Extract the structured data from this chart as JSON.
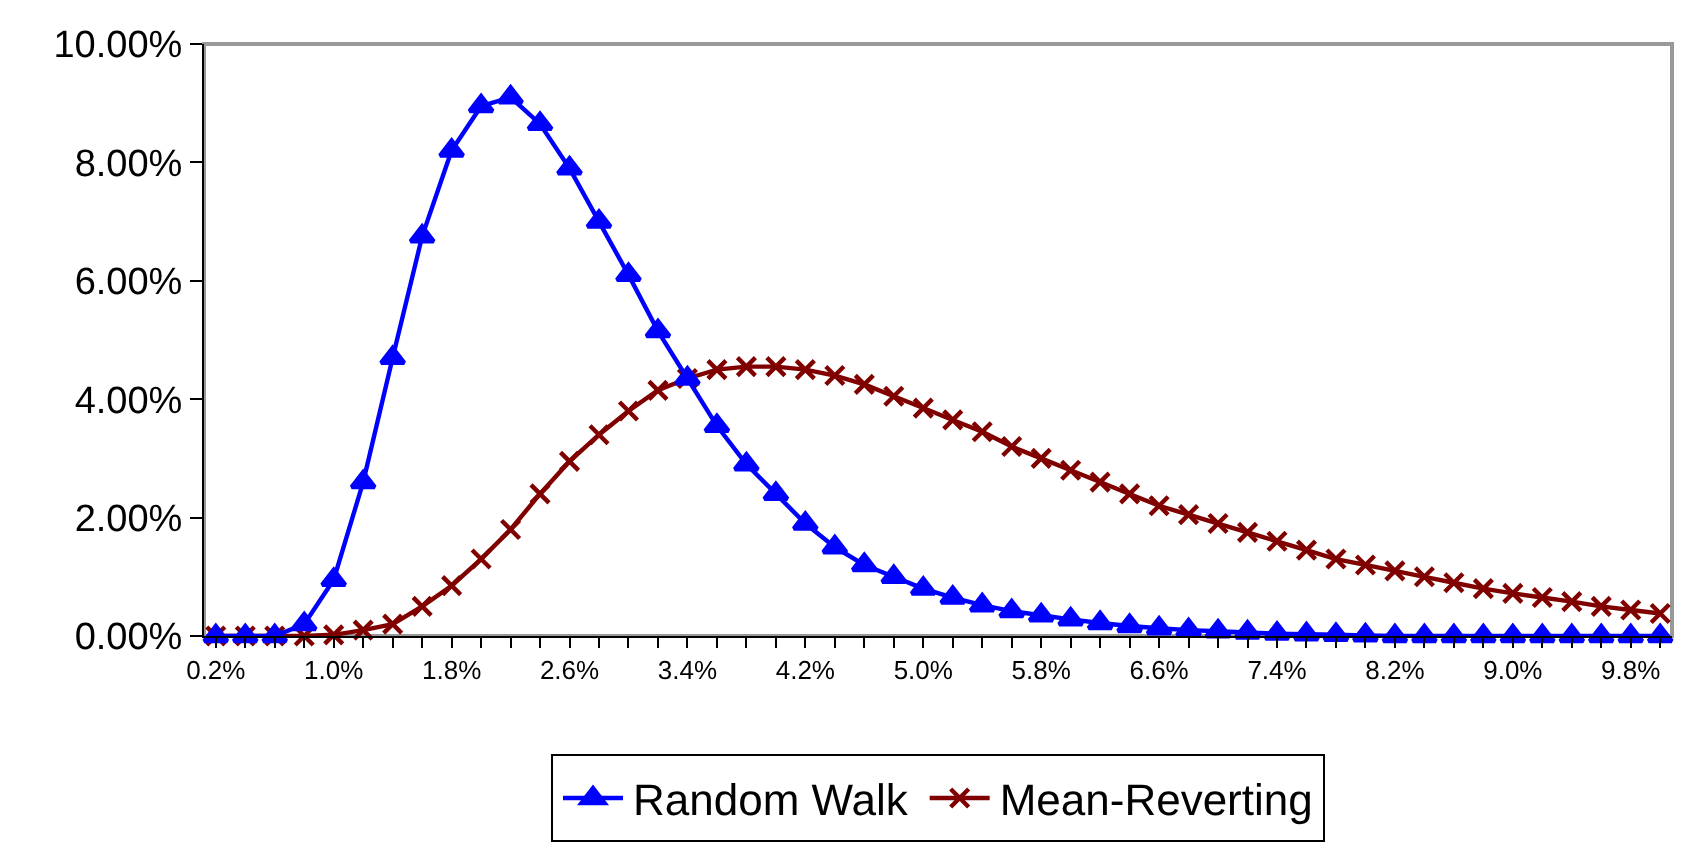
{
  "chart_data": {
    "type": "line",
    "categories": [
      "0.2%",
      null,
      null,
      null,
      "1.0%",
      null,
      null,
      null,
      "1.8%",
      null,
      null,
      null,
      "2.6%",
      null,
      null,
      null,
      "3.4%",
      null,
      null,
      null,
      "4.2%",
      null,
      null,
      null,
      "5.0%",
      null,
      null,
      null,
      "5.8%",
      null,
      null,
      null,
      "6.6%",
      null,
      null,
      null,
      "7.4%",
      null,
      null,
      null,
      "8.2%",
      null,
      null,
      null,
      "9.0%",
      null,
      null,
      null,
      "9.8%",
      null
    ],
    "series": [
      {
        "name": "Random Walk",
        "color": "#0000ff",
        "marker": "triangle",
        "values": [
          0,
          0,
          0,
          0.2,
          0.95,
          2.6,
          4.7,
          6.75,
          8.2,
          8.95,
          9.1,
          8.65,
          7.9,
          7.0,
          6.1,
          5.15,
          4.35,
          3.55,
          2.9,
          2.4,
          1.9,
          1.5,
          1.2,
          1.0,
          0.8,
          0.65,
          0.52,
          0.42,
          0.35,
          0.28,
          0.22,
          0.17,
          0.13,
          0.1,
          0.08,
          0.06,
          0.04,
          0.03,
          0.02,
          0.01,
          0,
          0,
          0,
          0,
          0,
          0,
          0,
          0,
          0,
          0
        ]
      },
      {
        "name": "Mean-Reverting",
        "color": "#800000",
        "marker": "cross",
        "values": [
          0,
          0,
          0,
          0,
          0.02,
          0.1,
          0.2,
          0.5,
          0.85,
          1.3,
          1.8,
          2.4,
          2.95,
          3.4,
          3.8,
          4.15,
          4.35,
          4.5,
          4.55,
          4.55,
          4.5,
          4.4,
          4.25,
          4.05,
          3.85,
          3.65,
          3.45,
          3.2,
          3.0,
          2.8,
          2.6,
          2.4,
          2.2,
          2.05,
          1.9,
          1.75,
          1.6,
          1.45,
          1.3,
          1.2,
          1.1,
          1.0,
          0.9,
          0.8,
          0.72,
          0.65,
          0.58,
          0.5,
          0.44,
          0.38
        ]
      }
    ],
    "ylim": [
      0,
      10
    ],
    "yticks": [
      {
        "value": 0,
        "label": "0.00%"
      },
      {
        "value": 2,
        "label": "2.00%"
      },
      {
        "value": 4,
        "label": "4.00%"
      },
      {
        "value": 6,
        "label": "6.00%"
      },
      {
        "value": 8,
        "label": "8.00%"
      },
      {
        "value": 10,
        "label": "10.00%"
      }
    ],
    "grid": false,
    "legend": "bottom",
    "line_style": "solid"
  }
}
